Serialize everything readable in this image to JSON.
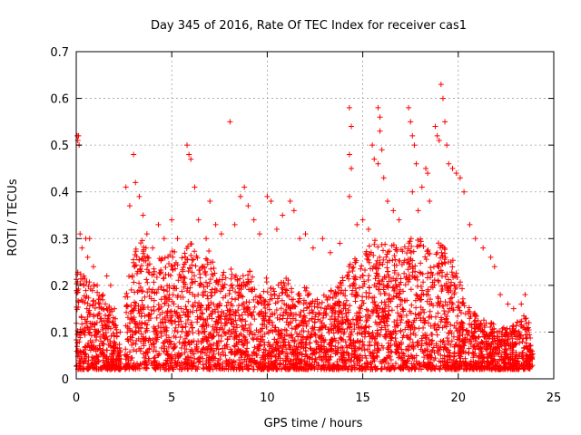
{
  "chart_data": {
    "type": "scatter",
    "title": "Day 345 of 2016, Rate Of TEC Index for receiver cas1",
    "xlabel": "GPS time / hours",
    "ylabel": "ROTI / TECUs",
    "xlim": [
      0,
      25
    ],
    "ylim": [
      0,
      0.7
    ],
    "x_ticks": [
      0,
      5,
      10,
      15,
      20,
      25
    ],
    "y_ticks": [
      0,
      0.1,
      0.2,
      0.3,
      0.4,
      0.5,
      0.6,
      0.7
    ],
    "x_tick_labels": [
      "0",
      "5",
      "10",
      "15",
      "20",
      "25"
    ],
    "y_tick_labels": [
      "0",
      "0.1",
      "0.2",
      "0.3",
      "0.4",
      "0.5",
      "0.6",
      "0.7"
    ],
    "grid": true,
    "marker": "plus",
    "color": "#ff0000",
    "series": [
      {
        "name": "cas1",
        "points": [
          [
            0.05,
            0.52
          ],
          [
            0.08,
            0.51
          ],
          [
            0.12,
            0.52
          ],
          [
            0.15,
            0.5
          ],
          [
            0.2,
            0.31
          ],
          [
            0.3,
            0.28
          ],
          [
            0.4,
            0.22
          ],
          [
            0.5,
            0.3
          ],
          [
            0.6,
            0.26
          ],
          [
            0.7,
            0.3
          ],
          [
            0.9,
            0.24
          ],
          [
            1.1,
            0.2
          ],
          [
            1.4,
            0.18
          ],
          [
            1.6,
            0.22
          ],
          [
            1.8,
            0.2
          ],
          [
            2.0,
            0.15
          ],
          [
            2.3,
            0.1
          ],
          [
            3.0,
            0.48
          ],
          [
            3.1,
            0.42
          ],
          [
            3.3,
            0.39
          ],
          [
            2.6,
            0.41
          ],
          [
            2.8,
            0.37
          ],
          [
            3.5,
            0.35
          ],
          [
            3.7,
            0.31
          ],
          [
            4.0,
            0.28
          ],
          [
            4.3,
            0.33
          ],
          [
            4.6,
            0.3
          ],
          [
            5.0,
            0.34
          ],
          [
            5.3,
            0.3
          ],
          [
            5.8,
            0.5
          ],
          [
            5.9,
            0.48
          ],
          [
            6.0,
            0.47
          ],
          [
            6.2,
            0.41
          ],
          [
            6.4,
            0.34
          ],
          [
            6.8,
            0.3
          ],
          [
            7.0,
            0.38
          ],
          [
            7.3,
            0.33
          ],
          [
            7.6,
            0.31
          ],
          [
            8.05,
            0.55
          ],
          [
            8.3,
            0.33
          ],
          [
            8.6,
            0.39
          ],
          [
            8.8,
            0.41
          ],
          [
            9.0,
            0.37
          ],
          [
            9.3,
            0.34
          ],
          [
            9.6,
            0.31
          ],
          [
            10.0,
            0.39
          ],
          [
            10.2,
            0.38
          ],
          [
            10.5,
            0.32
          ],
          [
            10.8,
            0.35
          ],
          [
            11.2,
            0.38
          ],
          [
            11.4,
            0.36
          ],
          [
            11.7,
            0.3
          ],
          [
            12.0,
            0.31
          ],
          [
            12.4,
            0.28
          ],
          [
            12.9,
            0.3
          ],
          [
            13.3,
            0.27
          ],
          [
            13.8,
            0.29
          ],
          [
            14.3,
            0.58
          ],
          [
            14.4,
            0.54
          ],
          [
            14.3,
            0.48
          ],
          [
            14.4,
            0.45
          ],
          [
            14.3,
            0.39
          ],
          [
            14.7,
            0.33
          ],
          [
            15.0,
            0.34
          ],
          [
            15.3,
            0.32
          ],
          [
            15.5,
            0.5
          ],
          [
            15.6,
            0.47
          ],
          [
            15.8,
            0.58
          ],
          [
            15.9,
            0.56
          ],
          [
            15.9,
            0.53
          ],
          [
            16.0,
            0.49
          ],
          [
            15.8,
            0.46
          ],
          [
            16.1,
            0.43
          ],
          [
            16.3,
            0.38
          ],
          [
            16.6,
            0.36
          ],
          [
            16.9,
            0.34
          ],
          [
            17.4,
            0.58
          ],
          [
            17.5,
            0.55
          ],
          [
            17.6,
            0.52
          ],
          [
            17.7,
            0.5
          ],
          [
            17.8,
            0.46
          ],
          [
            17.6,
            0.4
          ],
          [
            17.9,
            0.36
          ],
          [
            18.1,
            0.41
          ],
          [
            18.3,
            0.45
          ],
          [
            18.4,
            0.44
          ],
          [
            18.5,
            0.38
          ],
          [
            18.8,
            0.54
          ],
          [
            18.9,
            0.52
          ],
          [
            19.0,
            0.51
          ],
          [
            19.1,
            0.63
          ],
          [
            19.2,
            0.6
          ],
          [
            19.3,
            0.55
          ],
          [
            19.4,
            0.5
          ],
          [
            19.5,
            0.46
          ],
          [
            19.7,
            0.45
          ],
          [
            19.9,
            0.44
          ],
          [
            20.1,
            0.43
          ],
          [
            20.3,
            0.4
          ],
          [
            20.6,
            0.33
          ],
          [
            20.9,
            0.3
          ],
          [
            21.3,
            0.28
          ],
          [
            21.7,
            0.26
          ],
          [
            21.9,
            0.24
          ],
          [
            22.2,
            0.18
          ],
          [
            22.6,
            0.16
          ],
          [
            22.9,
            0.15
          ],
          [
            23.3,
            0.16
          ],
          [
            23.5,
            0.18
          ],
          [
            23.7,
            0.12
          ],
          [
            23.8,
            0.05
          ]
        ]
      }
    ]
  }
}
